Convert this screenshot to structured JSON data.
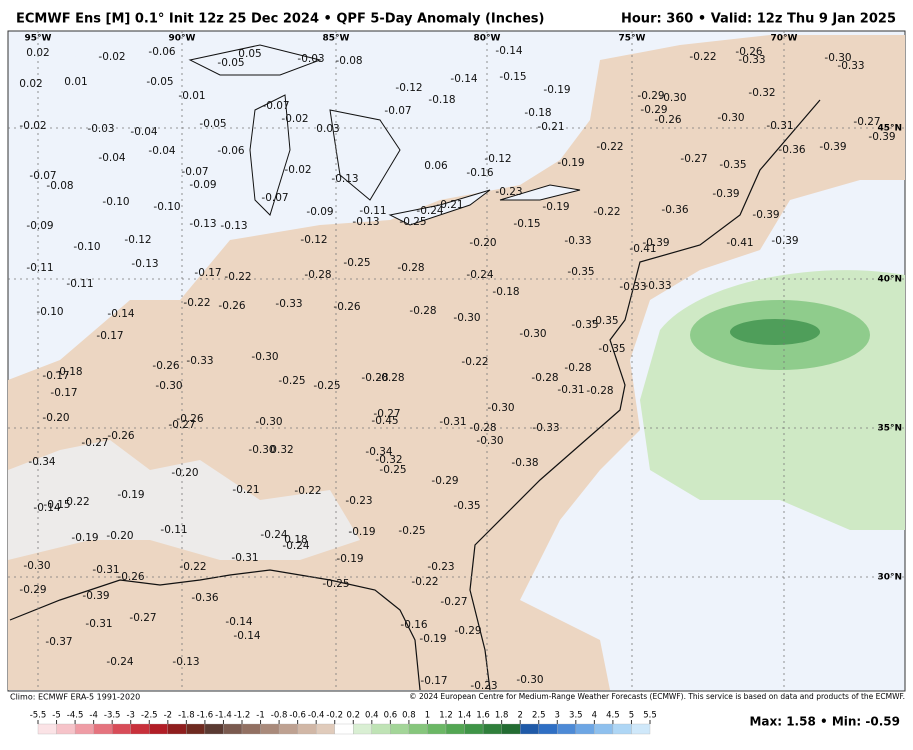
{
  "header": {
    "title": "ECMWF Ens [M] 0.1° Init 12z 25 Dec 2024 • QPF 5-Day Anomaly (Inches)",
    "valid": "Hour: 360 • Valid: 12z Thu 9 Jan 2025"
  },
  "map": {
    "lon_labels": [
      "95°W",
      "90°W",
      "85°W",
      "80°W",
      "75°W",
      "70°W"
    ],
    "lat_labels": [
      "45°N",
      "40°N",
      "35°N",
      "30°N"
    ],
    "values": [
      "0.02",
      "-0.02",
      "-0.06",
      "-0.05",
      "0.05",
      "-0.03",
      "-0.08",
      "-0.14",
      "0.02",
      "0.01",
      "-0.05",
      "-0.01",
      "-0.12",
      "-0.18",
      "-0.14",
      "-0.15",
      "-0.19",
      "-0.22",
      "-0.26",
      "-0.33",
      "-0.30",
      "-0.33",
      "-0.32",
      "-0.07",
      "-0.07",
      "-0.02",
      "-0.02",
      "-0.03",
      "-0.04",
      "-0.05",
      "0.03",
      "-0.18",
      "-0.21",
      "-0.29",
      "-0.30",
      "-0.29",
      "-0.26",
      "-0.30",
      "-0.31",
      "-0.27",
      "-0.39",
      "-0.04",
      "-0.04",
      "-0.06",
      "-0.02",
      "-0.13",
      "0.06",
      "-0.12",
      "-0.16",
      "-0.19",
      "-0.22",
      "-0.27",
      "-0.35",
      "-0.36",
      "-0.39",
      "-0.07",
      "-0.08",
      "-0.07",
      "-0.09",
      "-0.07",
      "-0.09",
      "-0.11",
      "-0.13",
      "-0.24",
      "-0.21",
      "-0.25",
      "-0.23",
      "-0.10",
      "-0.10",
      "-0.39",
      "-0.19",
      "-0.22",
      "-0.36",
      "-0.39",
      "-0.09",
      "-0.13",
      "-0.13",
      "-0.15",
      "-0.10",
      "-0.12",
      "-0.12",
      "-0.20",
      "-0.33",
      "-0.39",
      "-0.41",
      "-0.41",
      "-0.39",
      "-0.11",
      "-0.13",
      "-0.17",
      "-0.22",
      "-0.28",
      "-0.25",
      "-0.28",
      "-0.24",
      "-0.35",
      "-0.11",
      "-0.18",
      "-0.33",
      "-0.33",
      "-0.10",
      "-0.14",
      "-0.22",
      "-0.26",
      "-0.33",
      "-0.26",
      "-0.28",
      "-0.30",
      "-0.35",
      "-0.35",
      "-0.17",
      "-0.30",
      "-0.35",
      "-0.18",
      "-0.17",
      "-0.26",
      "-0.33",
      "-0.30",
      "-0.22",
      "-0.28",
      "-0.17",
      "-0.30",
      "-0.25",
      "-0.25",
      "-0.28",
      "-0.28",
      "-0.28",
      "-0.31",
      "-0.28",
      "-0.20",
      "-0.26",
      "-0.27",
      "-0.30",
      "-0.27",
      "-0.45",
      "-0.31",
      "-0.30",
      "-0.27",
      "-0.26",
      "-0.28",
      "-0.30",
      "-0.33",
      "-0.34",
      "-0.30",
      "0.32",
      "-0.34",
      "-0.32",
      "-0.25",
      "-0.38",
      "-0.20",
      "-0.29",
      "-0.15",
      "-0.14",
      "0.22",
      "-0.19",
      "-0.21",
      "-0.22",
      "-0.23",
      "-0.35",
      "-0.11",
      "-0.24",
      "0.18",
      "-0.24",
      "-0.19",
      "-0.25",
      "-0.19",
      "-0.20",
      "-0.31",
      "-0.19",
      "-0.22",
      "-0.30",
      "-0.31",
      "-0.26",
      "-0.25",
      "-0.22",
      "-0.23",
      "-0.29",
      "-0.39",
      "-0.36",
      "-0.27",
      "-0.14",
      "-0.27",
      "-0.31",
      "-0.16",
      "-0.29",
      "-0.14",
      "-0.19",
      "-0.37",
      "-0.24",
      "-0.13",
      "-0.30",
      "-0.17",
      "-0.23"
    ]
  },
  "footer": {
    "climo": "Climo: ECMWF ERA-5 1991-2020",
    "copyright": "© 2024 European Centre for Medium-Range Weather Forecasts (ECMWF). This service is based on data and products of the ECMWF.",
    "max_min": "Max: 1.58 • Min: -0.59"
  },
  "colorbar": {
    "ticks": [
      -5.5,
      -5,
      -4.5,
      -4,
      -3.5,
      -3,
      -2.5,
      -2,
      -1.8,
      -1.6,
      -1.4,
      -1.2,
      -1,
      -0.8,
      -0.6,
      -0.4,
      -0.2,
      0.2,
      0.4,
      0.6,
      0.8,
      1,
      1.2,
      1.4,
      1.6,
      1.8,
      2,
      2.5,
      3,
      3.5,
      4,
      4.5,
      5,
      5.5
    ]
  }
}
